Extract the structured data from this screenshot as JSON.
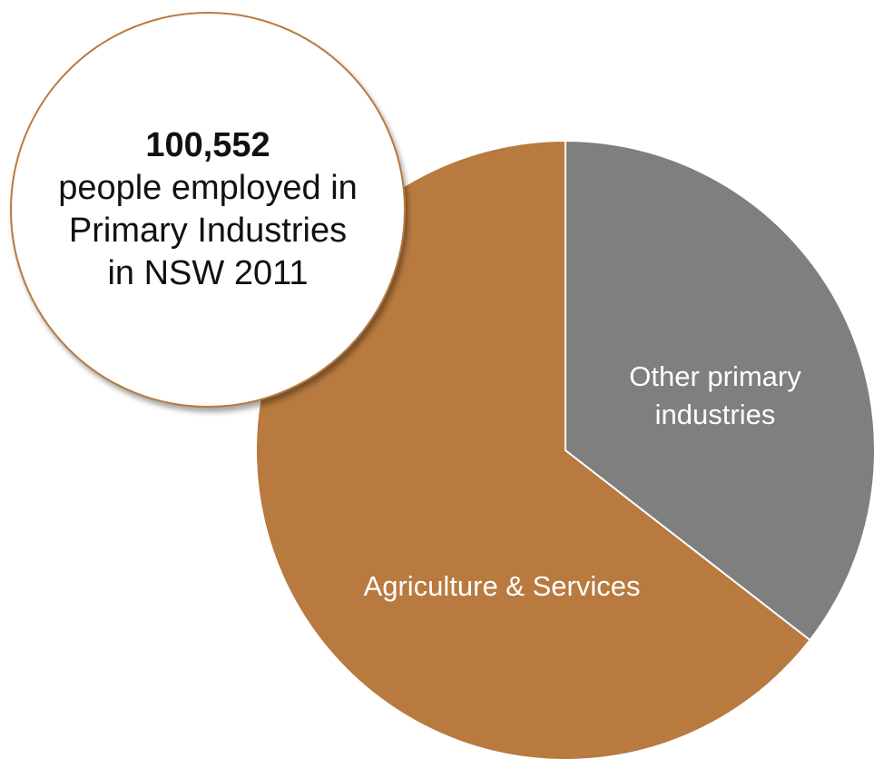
{
  "chart_data": {
    "type": "pie",
    "slices": [
      {
        "label": "Other primary industries",
        "share": 0.355,
        "color": "#7f7f7f"
      },
      {
        "label": "Agriculture & Services",
        "share": 0.645,
        "color": "#b87a3f"
      }
    ],
    "start_angle_deg": 0,
    "direction": "clockwise",
    "legend": "none"
  },
  "callout": {
    "value": "100,552",
    "text": "people employed in Primary Industries in NSW 2011",
    "border_color": "#b87a3f"
  }
}
